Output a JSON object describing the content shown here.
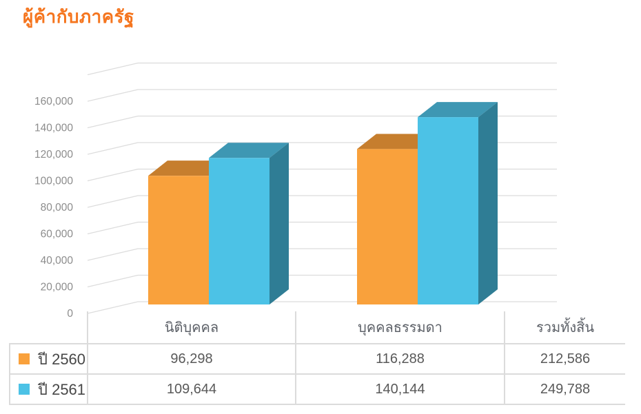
{
  "title": "ผู้ค้ากับภาครัฐ",
  "accent_color": "#F5751E",
  "chart_data": {
    "type": "bar",
    "is_3d": true,
    "title": "ผู้ค้ากับภาครัฐ",
    "categories": [
      "นิติบุคคล",
      "บุคคลธรรมดา"
    ],
    "series": [
      {
        "key": "2560",
        "name": "ปี 2560",
        "values": [
          96298,
          116288
        ],
        "total": 212586,
        "color": "#F9A13C",
        "color_top": "#C67E2E",
        "color_side": "#B5731F"
      },
      {
        "key": "2561",
        "name": "ปี 2561",
        "values": [
          109644,
          140144
        ],
        "total": 249788,
        "color": "#4CC2E6",
        "color_top": "#3E97B3",
        "color_side": "#2F7D95"
      }
    ],
    "ylabel": "",
    "xlabel": "",
    "ylim": [
      0,
      180000
    ],
    "ytick_step": 20000,
    "yticks": [
      "0",
      "20,000",
      "40,000",
      "60,000",
      "80,000",
      "100,000",
      "120,000",
      "140,000",
      "160,000"
    ],
    "grid": true,
    "grid_color": "#dcdcdc",
    "legend_position": "table-left"
  },
  "table": {
    "columns": [
      "นิติบุคคล",
      "บุคคลธรรมดา",
      "รวมทั้งสิ้น"
    ],
    "rows": [
      {
        "label": "ปี 2560",
        "values": [
          "96,298",
          "116,288",
          "212,586"
        ]
      },
      {
        "label": "ปี 2561",
        "values": [
          "109,644",
          "140,144",
          "249,788"
        ]
      }
    ]
  }
}
